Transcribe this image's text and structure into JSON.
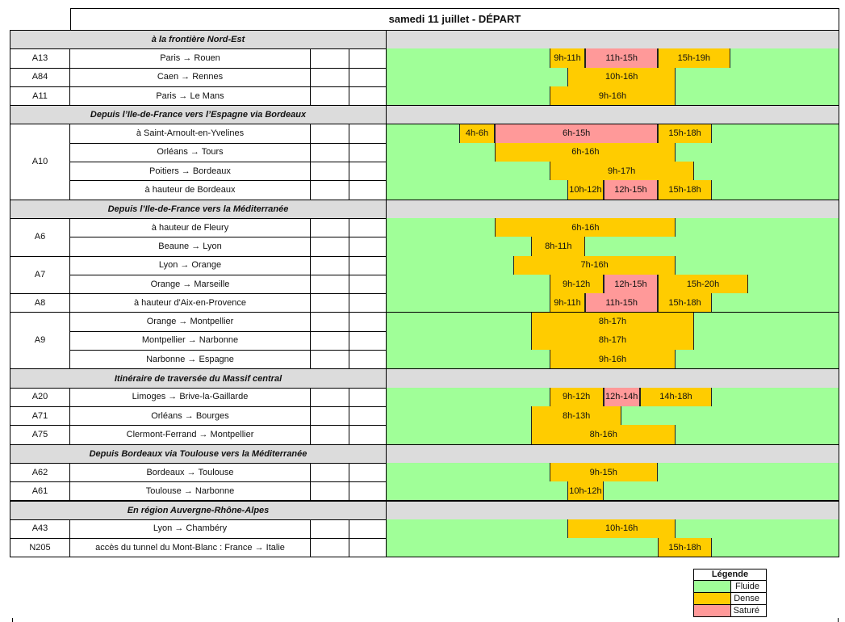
{
  "title": "samedi 11 juillet - DÉPART",
  "colors": {
    "fluide": "#a0ff98",
    "dense": "#ffcc00",
    "sature": "#ff9999",
    "section": "#dcdcdc"
  },
  "timeline_hours": 25,
  "sections": [
    {
      "label": "à la frontière Nord-Est",
      "groups": [
        {
          "road": "A13",
          "rows": [
            {
              "desc": "Paris → Rouen",
              "bars": [
                {
                  "from": 9,
                  "to": 11,
                  "label": "9h-11h",
                  "level": "dense"
                },
                {
                  "from": 11,
                  "to": 15,
                  "label": "11h-15h",
                  "level": "sature"
                },
                {
                  "from": 15,
                  "to": 19,
                  "label": "15h-19h",
                  "level": "dense"
                }
              ]
            }
          ]
        },
        {
          "road": "A84",
          "rows": [
            {
              "desc": "Caen → Rennes",
              "bars": [
                {
                  "from": 10,
                  "to": 16,
                  "label": "10h-16h",
                  "level": "dense"
                }
              ]
            }
          ]
        },
        {
          "road": "A11",
          "rows": [
            {
              "desc": "Paris → Le Mans",
              "bars": [
                {
                  "from": 9,
                  "to": 16,
                  "label": "9h-16h",
                  "level": "dense"
                }
              ]
            }
          ]
        }
      ]
    },
    {
      "label": "Depuis l’Ile-de-France vers l’Espagne via Bordeaux",
      "groups": [
        {
          "road": "A10",
          "rows": [
            {
              "desc": "à Saint-Arnoult-en-Yvelines",
              "bars": [
                {
                  "from": 4,
                  "to": 6,
                  "label": "4h-6h",
                  "level": "dense"
                },
                {
                  "from": 6,
                  "to": 15,
                  "label": "6h-15h",
                  "level": "sature"
                },
                {
                  "from": 15,
                  "to": 18,
                  "label": "15h-18h",
                  "level": "dense"
                }
              ]
            },
            {
              "desc": "Orléans → Tours",
              "bars": [
                {
                  "from": 6,
                  "to": 16,
                  "label": "6h-16h",
                  "level": "dense"
                }
              ]
            },
            {
              "desc": "Poitiers → Bordeaux",
              "bars": [
                {
                  "from": 9,
                  "to": 17,
                  "label": "9h-17h",
                  "level": "dense"
                }
              ]
            },
            {
              "desc": "à hauteur de Bordeaux",
              "bars": [
                {
                  "from": 10,
                  "to": 12,
                  "label": "10h-12h",
                  "level": "dense"
                },
                {
                  "from": 12,
                  "to": 15,
                  "label": "12h-15h",
                  "level": "sature"
                },
                {
                  "from": 15,
                  "to": 18,
                  "label": "15h-18h",
                  "level": "dense"
                }
              ]
            }
          ]
        }
      ]
    },
    {
      "label": "Depuis l’Ile-de-France vers la Méditerranée",
      "groups": [
        {
          "road": "A6",
          "rows": [
            {
              "desc": "à hauteur de Fleury",
              "bars": [
                {
                  "from": 6,
                  "to": 16,
                  "label": "6h-16h",
                  "level": "dense"
                }
              ]
            },
            {
              "desc": "Beaune → Lyon",
              "bars": [
                {
                  "from": 8,
                  "to": 11,
                  "label": "8h-11h",
                  "level": "dense"
                }
              ]
            }
          ]
        },
        {
          "road": "A7",
          "rows": [
            {
              "desc": "Lyon → Orange",
              "bars": [
                {
                  "from": 7,
                  "to": 16,
                  "label": "7h-16h",
                  "level": "dense"
                }
              ]
            },
            {
              "desc": "Orange → Marseille",
              "bars": [
                {
                  "from": 9,
                  "to": 12,
                  "label": "9h-12h",
                  "level": "dense"
                },
                {
                  "from": 12,
                  "to": 15,
                  "label": "12h-15h",
                  "level": "sature"
                },
                {
                  "from": 15,
                  "to": 20,
                  "label": "15h-20h",
                  "level": "dense"
                }
              ]
            }
          ]
        },
        {
          "road": "A8",
          "rows": [
            {
              "desc": "à hauteur d'Aix-en-Provence",
              "bars": [
                {
                  "from": 9,
                  "to": 11,
                  "label": "9h-11h",
                  "level": "dense"
                },
                {
                  "from": 11,
                  "to": 15,
                  "label": "11h-15h",
                  "level": "sature"
                },
                {
                  "from": 15,
                  "to": 18,
                  "label": "15h-18h",
                  "level": "dense"
                }
              ]
            }
          ]
        },
        {
          "road": "A9",
          "rows": [
            {
              "desc": "Orange → Montpellier",
              "bars": [
                {
                  "from": 8,
                  "to": 17,
                  "label": "8h-17h",
                  "level": "dense"
                }
              ]
            },
            {
              "desc": "Montpellier → Narbonne",
              "bars": [
                {
                  "from": 8,
                  "to": 17,
                  "label": "8h-17h",
                  "level": "dense"
                }
              ]
            },
            {
              "desc": "Narbonne → Espagne",
              "bars": [
                {
                  "from": 9,
                  "to": 16,
                  "label": "9h-16h",
                  "level": "dense"
                }
              ]
            }
          ]
        }
      ]
    },
    {
      "label": "Itinéraire de traversée du Massif central",
      "groups": [
        {
          "road": "A20",
          "rows": [
            {
              "desc": "Limoges → Brive-la-Gaillarde",
              "bars": [
                {
                  "from": 9,
                  "to": 12,
                  "label": "9h-12h",
                  "level": "dense"
                },
                {
                  "from": 12,
                  "to": 14,
                  "label": "12h-14h",
                  "level": "sature"
                },
                {
                  "from": 14,
                  "to": 18,
                  "label": "14h-18h",
                  "level": "dense"
                }
              ]
            }
          ]
        },
        {
          "road": "A71",
          "rows": [
            {
              "desc": "Orléans → Bourges",
              "bars": [
                {
                  "from": 8,
                  "to": 13,
                  "label": "8h-13h",
                  "level": "dense"
                }
              ]
            }
          ]
        },
        {
          "road": "A75",
          "rows": [
            {
              "desc": "Clermont-Ferrand → Montpellier",
              "bars": [
                {
                  "from": 8,
                  "to": 16,
                  "label": "8h-16h",
                  "level": "dense"
                }
              ]
            }
          ]
        }
      ]
    },
    {
      "label": "Depuis Bordeaux via Toulouse vers la Méditerranée",
      "groups": [
        {
          "road": "A62",
          "rows": [
            {
              "desc": "Bordeaux → Toulouse",
              "bars": [
                {
                  "from": 9,
                  "to": 15,
                  "label": "9h-15h",
                  "level": "dense"
                }
              ]
            }
          ]
        },
        {
          "road": "A61",
          "rows": [
            {
              "desc": "Toulouse → Narbonne",
              "bars": [
                {
                  "from": 10,
                  "to": 12,
                  "label": "10h-12h",
                  "level": "dense"
                }
              ]
            }
          ]
        }
      ]
    },
    {
      "label": "En région Auvergne-Rhône-Alpes",
      "groups": [
        {
          "road": "A43",
          "rows": [
            {
              "desc": "Lyon → Chambéry",
              "bars": [
                {
                  "from": 10,
                  "to": 16,
                  "label": "10h-16h",
                  "level": "dense"
                }
              ]
            }
          ]
        },
        {
          "road": "N205",
          "rows": [
            {
              "desc": "accès du tunnel du Mont-Blanc : France → Italie",
              "bars": [
                {
                  "from": 15,
                  "to": 18,
                  "label": "15h-18h",
                  "level": "dense"
                }
              ]
            }
          ]
        }
      ]
    }
  ],
  "legend": {
    "title": "Légende",
    "items": [
      {
        "label": "Fluide",
        "level": "fluide"
      },
      {
        "label": "Dense",
        "level": "dense"
      },
      {
        "label": "Saturé",
        "level": "sature"
      }
    ]
  }
}
